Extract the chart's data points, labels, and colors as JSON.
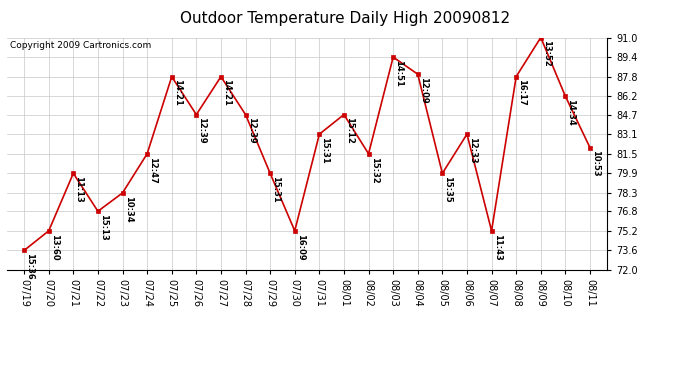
{
  "title": "Outdoor Temperature Daily High 20090812",
  "copyright": "Copyright 2009 Cartronics.com",
  "x_labels": [
    "07/19",
    "07/20",
    "07/21",
    "07/22",
    "07/23",
    "07/24",
    "07/25",
    "07/26",
    "07/27",
    "07/28",
    "07/29",
    "07/30",
    "07/31",
    "08/01",
    "08/02",
    "08/03",
    "08/04",
    "08/05",
    "08/06",
    "08/07",
    "08/08",
    "08/09",
    "08/10",
    "08/11"
  ],
  "y_values": [
    73.6,
    75.2,
    79.9,
    76.8,
    78.3,
    81.5,
    87.8,
    84.7,
    87.8,
    84.7,
    79.9,
    75.2,
    83.1,
    84.7,
    81.5,
    89.4,
    88.0,
    79.9,
    83.1,
    75.2,
    87.8,
    91.0,
    86.2,
    82.0
  ],
  "point_labels": [
    "15:36",
    "13:60",
    "11:13",
    "15:13",
    "10:34",
    "12:47",
    "14:21",
    "12:39",
    "14:21",
    "12:39",
    "15:31",
    "16:09",
    "15:31",
    "15:12",
    "15:32",
    "14:51",
    "12:09",
    "15:35",
    "12:33",
    "11:43",
    "16:17",
    "13:52",
    "14:34",
    "10:53"
  ],
  "y_ticks": [
    72.0,
    73.6,
    75.2,
    76.8,
    78.3,
    79.9,
    81.5,
    83.1,
    84.7,
    86.2,
    87.8,
    89.4,
    91.0
  ],
  "ylim": [
    72.0,
    91.0
  ],
  "xlim": [
    -0.7,
    23.7
  ],
  "line_color": "#cc0000",
  "marker_color": "#cc0000",
  "grid_color": "#c8c8c8",
  "bg_color": "#ffffff",
  "title_fontsize": 11,
  "label_fontsize": 6,
  "tick_fontsize": 7,
  "copyright_fontsize": 6.5
}
